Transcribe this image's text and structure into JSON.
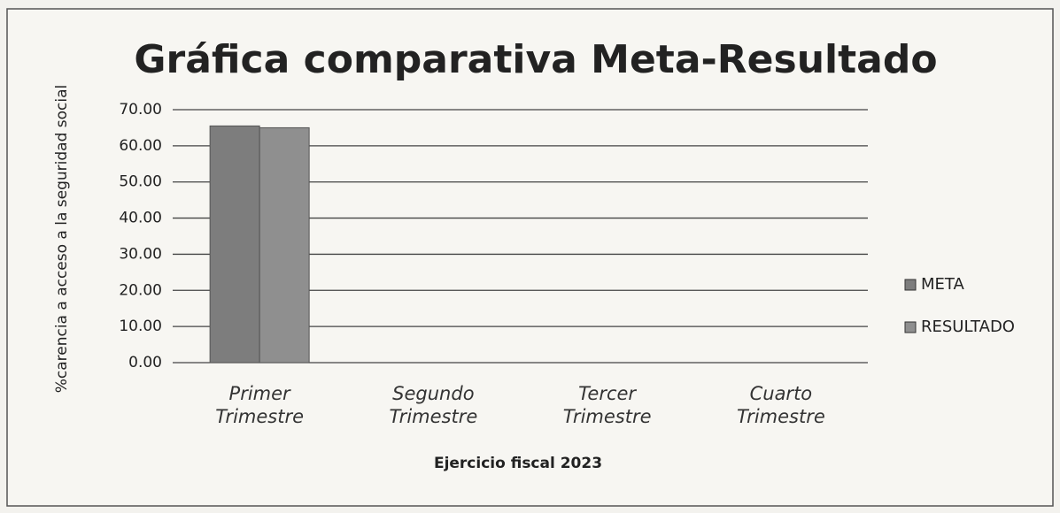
{
  "chart_data": {
    "type": "bar",
    "title": "Gráfica comparativa Meta-Resultado",
    "y_label": "%carencia a acceso a la seguridad social",
    "x_label": "Ejercicio fiscal 2023",
    "categories": [
      "Primer Trimestre",
      "Segundo Trimestre",
      "Tercer Trimestre",
      "Cuarto Trimestre"
    ],
    "series": [
      {
        "name": "META",
        "color": "#7d7d7d",
        "values": [
          65.5,
          null,
          null,
          null
        ]
      },
      {
        "name": "RESULTADO",
        "color": "#8f8f8f",
        "values": [
          65,
          null,
          null,
          null
        ]
      }
    ],
    "ylim": [
      0,
      70
    ],
    "yticks": [
      {
        "value": 0,
        "label": "0.00"
      },
      {
        "value": 10,
        "label": "10.00"
      },
      {
        "value": 20,
        "label": "20.00"
      },
      {
        "value": 30,
        "label": "30.00"
      },
      {
        "value": 40,
        "label": "40.00"
      },
      {
        "value": 50,
        "label": "50.00"
      },
      {
        "value": 60,
        "label": "60.00"
      },
      {
        "value": 70,
        "label": "70.00"
      }
    ],
    "grid": true,
    "legend": "right"
  }
}
